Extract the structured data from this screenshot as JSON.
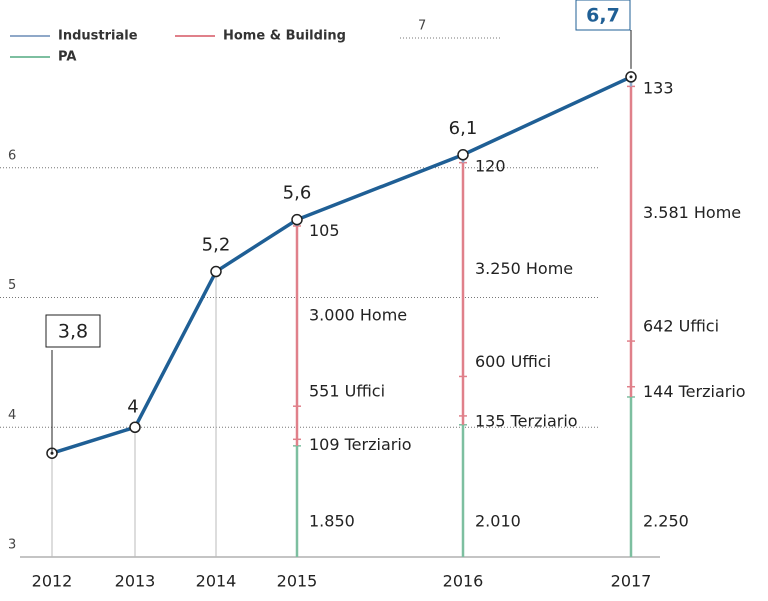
{
  "chart_data": {
    "type": "line",
    "categories": [
      "2012",
      "2013",
      "2014",
      "2015",
      "2016",
      "2017"
    ],
    "ylim": [
      3,
      7
    ],
    "yticks": [
      3,
      4,
      5,
      6,
      7
    ],
    "grid": true,
    "line": {
      "color": "#1f5f95",
      "values": [
        3.8,
        4,
        5.2,
        5.6,
        6.1,
        6.7
      ],
      "value_labels": [
        "3,8",
        "4",
        "5,2",
        "5,6",
        "6,1",
        "6,7"
      ]
    },
    "series": [
      {
        "name": "Industriale",
        "color": "#8fa8c8",
        "values": [
          null,
          null,
          null,
          105,
          120,
          133
        ],
        "value_labels": [
          null,
          null,
          null,
          "105",
          "120",
          "133"
        ]
      },
      {
        "name": "Home & Building",
        "color": "#e0808a",
        "segments": [
          {
            "values": [
              null,
              null,
              null,
              109,
              135,
              144
            ],
            "value_labels": [
              null,
              null,
              null,
              "109 Terziario",
              "135 Terziario",
              "144 Terziario"
            ]
          },
          {
            "values": [
              null,
              null,
              null,
              551,
              600,
              642
            ],
            "value_labels": [
              null,
              null,
              null,
              "551 Uffici",
              "600 Uffici",
              "642 Uffici"
            ]
          },
          {
            "values": [
              null,
              null,
              null,
              3000,
              3250,
              3581
            ],
            "value_labels": [
              null,
              null,
              null,
              "3.000 Home",
              "3.250 Home",
              "3.581 Home"
            ]
          }
        ]
      },
      {
        "name": "PA",
        "color": "#7dbfa0",
        "values": [
          null,
          null,
          null,
          1850,
          2010,
          2250
        ],
        "value_labels": [
          null,
          null,
          null,
          "1.850",
          "2.010",
          "2.250"
        ]
      }
    ]
  }
}
